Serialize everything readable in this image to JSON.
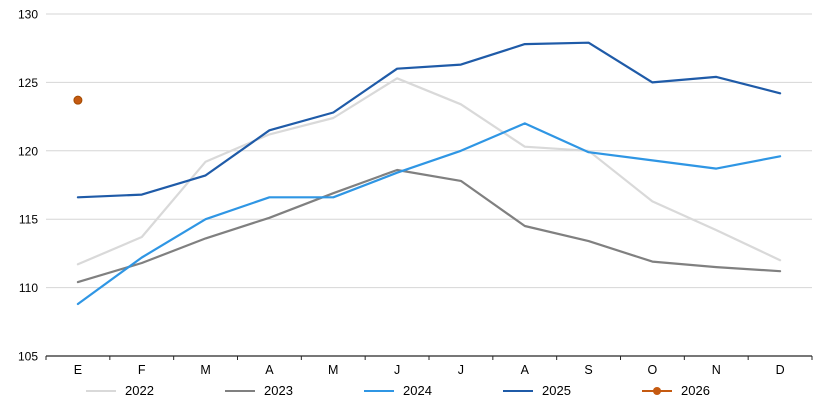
{
  "chart": {
    "background": "#ffffff",
    "grid_color": "#d6d6d6",
    "axis_color": "#262626",
    "label_color": "#000000"
  },
  "chart_data": {
    "type": "line",
    "title": "",
    "xlabel": "",
    "ylabel": "",
    "x_labels": [
      "E",
      "F",
      "M",
      "A",
      "M",
      "J",
      "J",
      "A",
      "S",
      "O",
      "N",
      "D"
    ],
    "ylim": [
      105,
      130
    ],
    "yticks": [
      105,
      110,
      115,
      120,
      125,
      130
    ],
    "grid": true,
    "legend_position": "bottom",
    "series": [
      {
        "name": "2022",
        "color": "#d9d9d9",
        "values": [
          111.7,
          113.7,
          119.2,
          121.2,
          122.4,
          125.3,
          123.4,
          120.3,
          120.0,
          116.3,
          114.2,
          112.0
        ]
      },
      {
        "name": "2023",
        "color": "#808080",
        "values": [
          110.4,
          111.8,
          113.6,
          115.1,
          116.9,
          118.6,
          117.8,
          114.5,
          113.4,
          111.9,
          111.5,
          111.2
        ]
      },
      {
        "name": "2024",
        "color": "#2f96e4",
        "values": [
          108.8,
          112.2,
          115.0,
          116.6,
          116.6,
          118.4,
          120.0,
          122.0,
          119.9,
          119.3,
          118.7,
          119.6
        ]
      },
      {
        "name": "2025",
        "color": "#1f5ba8",
        "values": [
          116.6,
          116.8,
          118.2,
          121.5,
          122.8,
          126.0,
          126.3,
          127.8,
          127.9,
          125.0,
          125.4,
          124.2
        ]
      }
    ],
    "points": [
      {
        "name": "2026",
        "color": "#c55a11",
        "x_index": 0,
        "value": 123.7,
        "marker": "circle"
      }
    ],
    "legend": [
      {
        "label": "2022",
        "color": "#d9d9d9",
        "type": "line"
      },
      {
        "label": "2023",
        "color": "#808080",
        "type": "line"
      },
      {
        "label": "2024",
        "color": "#2f96e4",
        "type": "line"
      },
      {
        "label": "2025",
        "color": "#1f5ba8",
        "type": "line"
      },
      {
        "label": "2026",
        "color": "#c55a11",
        "type": "line-dot"
      }
    ]
  }
}
